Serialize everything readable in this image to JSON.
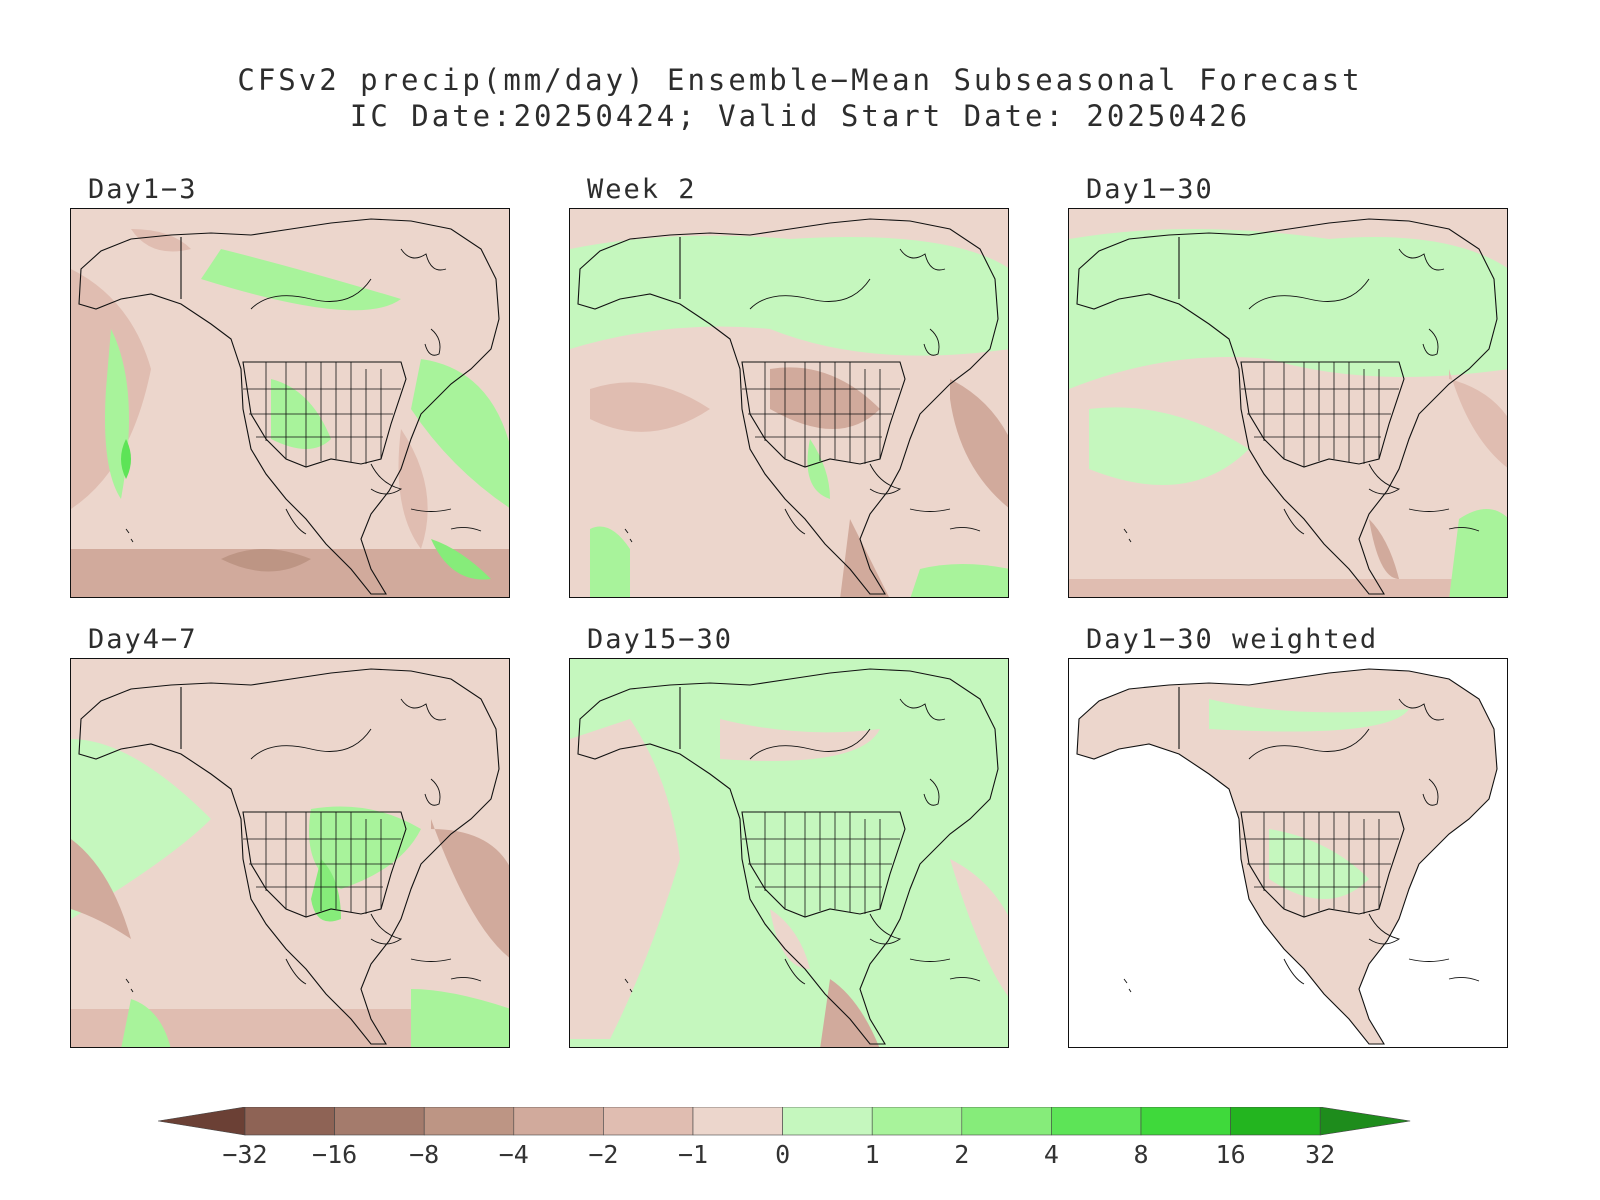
{
  "title": {
    "line1": "CFSv2 precip(mm/day) Ensemble−Mean Subseasonal Forecast",
    "line2": "IC Date:20250424; Valid Start Date: 20250426"
  },
  "panels": [
    {
      "id": "day1-3",
      "label": "Day1−3",
      "pattern": "stormy"
    },
    {
      "id": "week2",
      "label": "Week 2",
      "pattern": "dry-interior"
    },
    {
      "id": "day1-30",
      "label": "Day1−30",
      "pattern": "mild"
    },
    {
      "id": "day4-7",
      "label": "Day4−7",
      "pattern": "wet-east"
    },
    {
      "id": "day15-30",
      "label": "Day15−30",
      "pattern": "mild-green"
    },
    {
      "id": "day1-30w",
      "label": "Day1−30 weighted",
      "pattern": "land-only"
    }
  ],
  "colorbar": {
    "ticks": [
      "−32",
      "−16",
      "−8",
      "−4",
      "−2",
      "−1",
      "0",
      "1",
      "2",
      "4",
      "8",
      "16",
      "32"
    ],
    "colors": [
      "#6b4035",
      "#8e6355",
      "#a47b6c",
      "#bd9584",
      "#d1aa9c",
      "#e0bdb1",
      "#ecd6cc",
      "#c5f7be",
      "#a8f39b",
      "#86ec7a",
      "#5de457",
      "#3fd93b",
      "#23b51f",
      "#1e8c1c"
    ]
  }
}
